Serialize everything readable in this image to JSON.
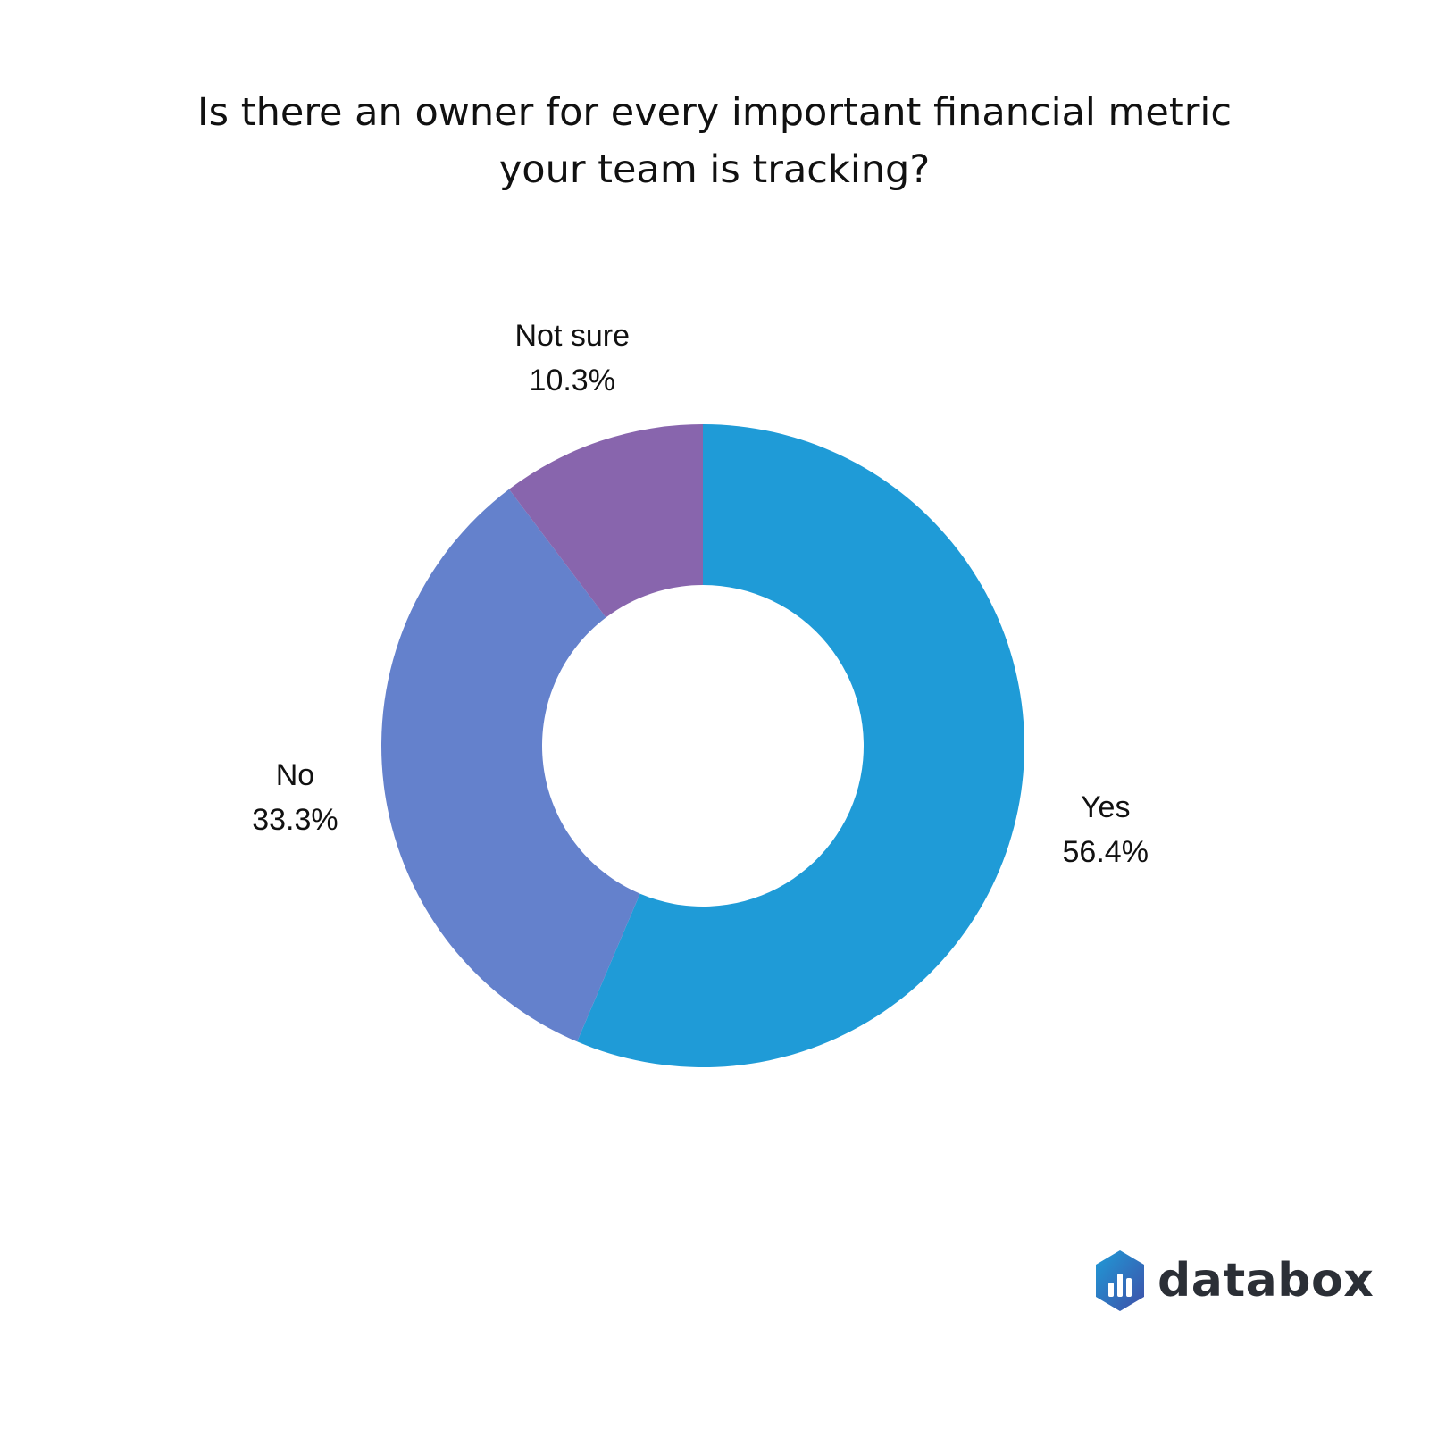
{
  "chart_data": {
    "type": "pie",
    "style": "donut",
    "title_lines": [
      "Is there an owner for every important financial metric",
      "your team is tracking?"
    ],
    "slices": [
      {
        "label": "Yes",
        "value": 56.4,
        "value_label": "56.4%",
        "color": "#1f9bd7"
      },
      {
        "label": "No",
        "value": 33.3,
        "value_label": "33.3%",
        "color": "#6481cc"
      },
      {
        "label": "Not sure",
        "value": 10.3,
        "value_label": "10.3%",
        "color": "#8865ad"
      }
    ],
    "legend": "none"
  },
  "brand": {
    "name": "databox",
    "logo_icon": "databox-logo-icon",
    "logo_colors": [
      "#1f9bd7",
      "#3f4fa8"
    ]
  }
}
